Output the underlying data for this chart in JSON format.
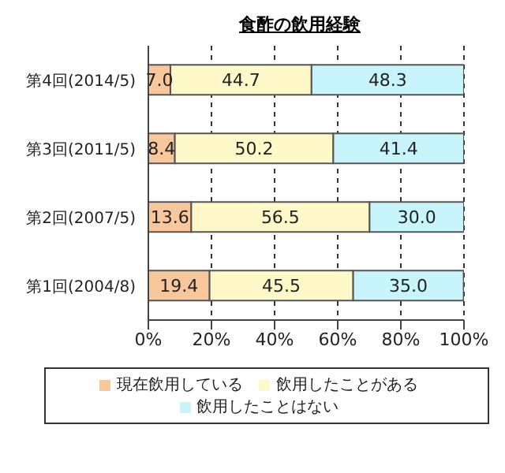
{
  "chart_data": {
    "type": "bar",
    "title": "食酢の飲用経験",
    "orientation": "horizontal",
    "stacked": true,
    "categories": [
      "第4回(2014/5)",
      "第3回(2011/5)",
      "第2回(2007/5)",
      "第1回(2004/8)"
    ],
    "series": [
      {
        "name": "現在飲用している",
        "color": "#f8c79c",
        "values": [
          7.0,
          8.4,
          13.6,
          19.4
        ],
        "value_labels": [
          "7.0",
          "8.4",
          "13.6",
          "19.4"
        ]
      },
      {
        "name": "飲用したことがある",
        "color": "#fff8c8",
        "values": [
          44.7,
          50.2,
          56.5,
          45.5
        ],
        "value_labels": [
          "44.7",
          "50.2",
          "56.5",
          "45.5"
        ]
      },
      {
        "name": "飲用したことはない",
        "color": "#c8f4fc",
        "values": [
          48.3,
          41.4,
          30.0,
          35.0
        ],
        "value_labels": [
          "48.3",
          "41.4",
          "30.0",
          "35.0"
        ]
      }
    ],
    "xlim": [
      0,
      100
    ],
    "xticks": [
      {
        "value": 0,
        "label": "0%"
      },
      {
        "value": 20,
        "label": "20%"
      },
      {
        "value": 40,
        "label": "40%"
      },
      {
        "value": 60,
        "label": "60%"
      },
      {
        "value": 80,
        "label": "80%"
      },
      {
        "value": 100,
        "label": "100%"
      }
    ],
    "grid": "x",
    "legend": "bottom"
  }
}
